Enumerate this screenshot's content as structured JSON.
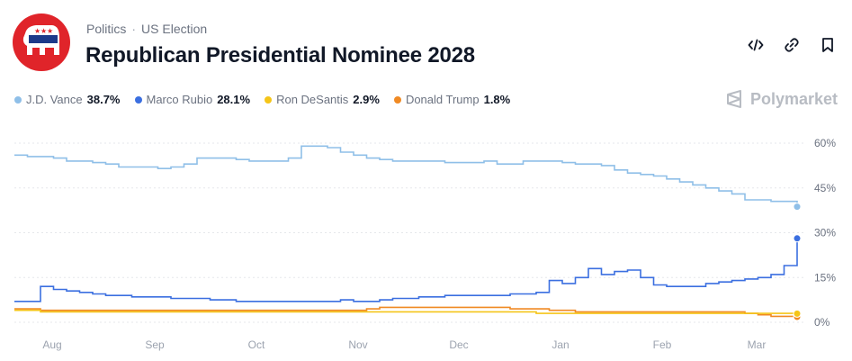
{
  "breadcrumb": {
    "category": "Politics",
    "separator": "·",
    "subcategory": "US Election"
  },
  "title": "Republican Presidential Nominee 2028",
  "icons": {
    "logo": "republican-elephant-icon",
    "embed": "code-icon",
    "link": "link-icon",
    "bookmark": "bookmark-icon"
  },
  "brand": "Polymarket",
  "colors": {
    "vance": "#8fbfe8",
    "rubio": "#3b6fe0",
    "desantis": "#f5c518",
    "trump": "#f08a24",
    "logo_red": "#e0242a"
  },
  "legend": [
    {
      "name": "J.D. Vance",
      "value": "38.7%"
    },
    {
      "name": "Marco Rubio",
      "value": "28.1%"
    },
    {
      "name": "Ron DeSantis",
      "value": "2.9%"
    },
    {
      "name": "Donald Trump",
      "value": "1.8%"
    }
  ],
  "chart_data": {
    "type": "line",
    "title": "Republican Presidential Nominee 2028",
    "x_labels": [
      "Aug",
      "Sep",
      "Oct",
      "Nov",
      "Dec",
      "Jan",
      "Feb",
      "Mar"
    ],
    "y_ticks": [
      "60%",
      "45%",
      "30%",
      "15%",
      "0%"
    ],
    "y_tick_values": [
      60,
      45,
      30,
      15,
      0
    ],
    "ylim": [
      0,
      60
    ],
    "grid": true,
    "series": [
      {
        "name": "J.D. Vance",
        "color": "#8fbfe8",
        "values": [
          56,
          55.5,
          55.5,
          55,
          54,
          54,
          53.5,
          53,
          52,
          52,
          52,
          51.5,
          52,
          53,
          55,
          55,
          55,
          54.5,
          54,
          54,
          54,
          55,
          59,
          59,
          58.5,
          57,
          56,
          55,
          54.5,
          54,
          54,
          54,
          54,
          53.5,
          53.5,
          53.5,
          54,
          53,
          53,
          54,
          54,
          54,
          53.5,
          53,
          53,
          52.5,
          51,
          50,
          49.5,
          49,
          48,
          47,
          46,
          45,
          44,
          43,
          41,
          41,
          40.5,
          40.5,
          38.7
        ]
      },
      {
        "name": "Marco Rubio",
        "color": "#3b6fe0",
        "values": [
          7,
          7,
          12,
          11,
          10.5,
          10,
          9.5,
          9,
          9,
          8.5,
          8.5,
          8.5,
          8,
          8,
          8,
          7.5,
          7.5,
          7,
          7,
          7,
          7,
          7,
          7,
          7,
          7,
          7.5,
          7,
          7,
          7.5,
          8,
          8,
          8.5,
          8.5,
          9,
          9,
          9,
          9,
          9,
          9.5,
          9.5,
          10,
          14,
          13,
          15,
          18,
          16,
          17,
          17.5,
          15,
          12.5,
          12,
          12,
          12,
          13,
          13.5,
          14,
          14.5,
          15,
          16,
          19,
          28.1
        ]
      },
      {
        "name": "Ron DeSantis",
        "color": "#f5c518",
        "values": [
          4,
          4,
          3.5,
          3.5,
          3.5,
          3.5,
          3.5,
          3.5,
          3.5,
          3.5,
          3.5,
          3.5,
          3.5,
          3.5,
          3.5,
          3.5,
          3.5,
          3.5,
          3.5,
          3.5,
          3.5,
          3.5,
          3.5,
          3.5,
          3.5,
          3.5,
          3.5,
          3.5,
          3.5,
          3.5,
          3.5,
          3.5,
          3.5,
          3.5,
          3.5,
          3.5,
          3.5,
          3.5,
          3.5,
          3.5,
          3,
          3,
          3,
          3,
          3,
          3,
          3,
          3,
          3,
          3,
          3,
          3,
          3,
          3,
          3,
          3,
          3,
          3,
          3,
          3,
          2.9
        ]
      },
      {
        "name": "Donald Trump",
        "color": "#f08a24",
        "values": [
          4.5,
          4.5,
          4,
          4,
          4,
          4,
          4,
          4,
          4,
          4,
          4,
          4,
          4,
          4,
          4,
          4,
          4,
          4,
          4,
          4,
          4,
          4,
          4,
          4,
          4,
          4,
          4,
          4.5,
          5,
          5,
          5,
          5,
          5,
          5,
          5,
          5,
          5,
          5,
          4.5,
          4.5,
          4.5,
          4,
          4,
          3.5,
          3.5,
          3.5,
          3.5,
          3.5,
          3.5,
          3.5,
          3.5,
          3.5,
          3.5,
          3.5,
          3.5,
          3.5,
          3,
          2.5,
          2,
          2,
          1.8
        ]
      }
    ]
  }
}
